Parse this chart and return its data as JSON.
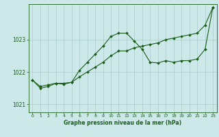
{
  "xlabel": "Graphe pression niveau de la mer (hPa)",
  "background_color": "#cce8e8",
  "line_color": "#1a5c1a",
  "grid_color": "#aacccc",
  "xlim": [
    -0.5,
    23.5
  ],
  "ylim": [
    1020.75,
    1024.1
  ],
  "yticks": [
    1021,
    1022,
    1023
  ],
  "xticks": [
    0,
    1,
    2,
    3,
    4,
    5,
    6,
    7,
    8,
    9,
    10,
    11,
    12,
    13,
    14,
    15,
    16,
    17,
    18,
    19,
    20,
    21,
    22,
    23
  ],
  "series1": {
    "x": [
      0,
      1,
      2,
      3,
      4,
      5,
      6,
      7,
      8,
      9,
      10,
      11,
      12,
      13,
      14,
      15,
      16,
      17,
      18,
      19,
      20,
      21,
      22,
      23
    ],
    "y": [
      1021.75,
      1021.55,
      1021.6,
      1021.65,
      1021.65,
      1021.68,
      1021.85,
      1022.0,
      1022.15,
      1022.3,
      1022.5,
      1022.65,
      1022.65,
      1022.75,
      1022.8,
      1022.85,
      1022.9,
      1023.0,
      1023.05,
      1023.1,
      1023.15,
      1023.2,
      1023.45,
      1024.0
    ]
  },
  "series2": {
    "x": [
      0,
      1,
      2,
      3,
      4,
      5,
      6,
      7,
      8,
      9,
      10,
      11,
      12,
      13,
      14,
      15,
      16,
      17,
      18,
      19,
      20,
      21,
      22,
      23
    ],
    "y": [
      1021.75,
      1021.5,
      1021.55,
      1021.65,
      1021.62,
      1021.68,
      1022.05,
      1022.3,
      1022.55,
      1022.8,
      1023.1,
      1023.2,
      1023.2,
      1022.95,
      1022.7,
      1022.3,
      1022.28,
      1022.35,
      1022.3,
      1022.35,
      1022.35,
      1022.4,
      1022.7,
      1024.0
    ]
  }
}
